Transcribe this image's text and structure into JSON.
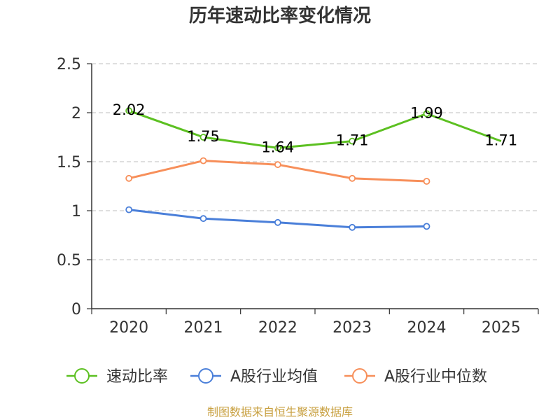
{
  "chart_data": {
    "type": "line",
    "title": "历年速动比率变化情况",
    "categories": [
      "2020",
      "2021",
      "2022",
      "2023",
      "2024",
      "2025"
    ],
    "ylim": [
      0,
      2.5
    ],
    "yticks": [
      "0",
      "0.5",
      "1",
      "1.5",
      "2",
      "2.5"
    ],
    "grid": true,
    "legend_position": "bottom",
    "series": [
      {
        "name": "速动比率",
        "color": "#5cc021",
        "values": [
          2.02,
          1.75,
          1.64,
          1.71,
          1.99,
          1.71
        ],
        "labels": [
          "2.02",
          "1.75",
          "1.64",
          "1.71",
          "1.99",
          "1.71"
        ],
        "markers_shown": [
          true,
          true,
          true,
          true,
          true,
          false
        ]
      },
      {
        "name": "A股行业均值",
        "color": "#4a7fd9",
        "values": [
          1.01,
          0.92,
          0.88,
          0.83,
          0.84,
          null
        ]
      },
      {
        "name": "A股行业中位数",
        "color": "#f78f5a",
        "values": [
          1.33,
          1.51,
          1.47,
          1.33,
          1.3,
          null
        ]
      }
    ],
    "source": "制图数据来自恒生聚源数据库"
  }
}
